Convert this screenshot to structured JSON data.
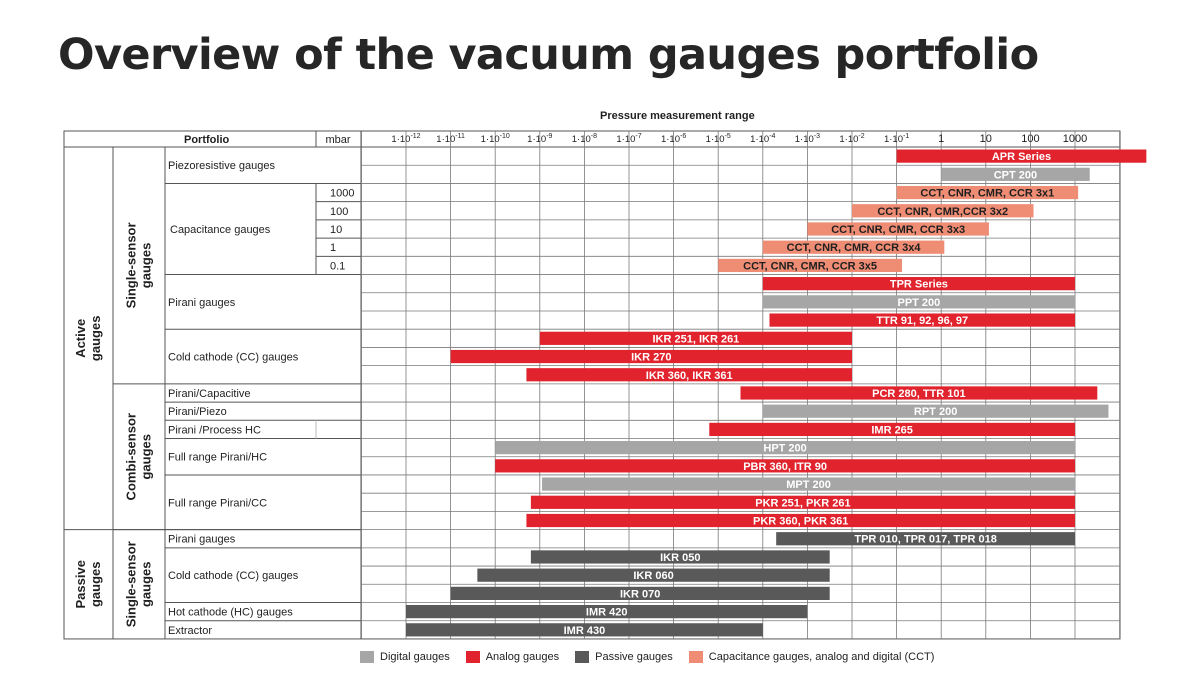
{
  "title": "Overview of the vacuum gauges portfolio",
  "chart_data": {
    "type": "bar",
    "orientation": "horizontal-range",
    "title": "Pressure measurement range",
    "xscale": "log",
    "xunit": "mbar",
    "xlim": [
      "1·10⁻¹³",
      "1·10⁴"
    ],
    "x_ticks": [
      "1·10-12",
      "1·10-11",
      "1·10-10",
      "1·10-9",
      "1·10-8",
      "1·10-7",
      "1·10-6",
      "1·10-5",
      "1·10-4",
      "1·10-3",
      "1·10-2",
      "1·10-1",
      "1",
      "10",
      "100",
      "1000"
    ],
    "header": {
      "portfolio": "Portfolio",
      "unit": "mbar"
    },
    "groups_l1": [
      {
        "label": "Active gauges",
        "rows": [
          0,
          20
        ]
      },
      {
        "label": "Passive gauges",
        "rows": [
          21,
          26
        ]
      }
    ],
    "groups_l2": [
      {
        "label": "Single-sensor gauges",
        "rows": [
          0,
          12
        ]
      },
      {
        "label": "Combi-sensor gauges",
        "rows": [
          13,
          20
        ]
      },
      {
        "label": "Single-sensor gauges",
        "rows": [
          21,
          26
        ]
      }
    ],
    "categories": [
      {
        "label": "Piezoresistive gauges",
        "rows": [
          0,
          1
        ]
      },
      {
        "label": "Capacitance gauges",
        "rows": [
          2,
          6
        ]
      },
      {
        "label": "Pirani gauges",
        "rows": [
          7,
          9
        ]
      },
      {
        "label": "Cold cathode (CC) gauges",
        "rows": [
          10,
          12
        ]
      },
      {
        "label": "Pirani/Capacitive",
        "rows": [
          13,
          13
        ]
      },
      {
        "label": "Pirani/Piezo",
        "rows": [
          14,
          14
        ]
      },
      {
        "label": "Pirani /Process HC",
        "rows": [
          15,
          15
        ]
      },
      {
        "label": "Full range Pirani/HC",
        "rows": [
          16,
          17
        ]
      },
      {
        "label": "Full range Pirani/CC",
        "rows": [
          18,
          20
        ]
      },
      {
        "label": "Pirani gauges",
        "rows": [
          21,
          21
        ]
      },
      {
        "label": "Cold cathode (CC) gauges",
        "rows": [
          22,
          24
        ]
      },
      {
        "label": "Hot cathode (HC) gauges",
        "rows": [
          25,
          25
        ]
      },
      {
        "label": "Extractor",
        "rows": [
          26,
          26
        ]
      }
    ],
    "mbar_labels": [
      {
        "row": 2,
        "text": "1000"
      },
      {
        "row": 3,
        "text": "100"
      },
      {
        "row": 4,
        "text": "10"
      },
      {
        "row": 5,
        "text": "1"
      },
      {
        "row": 6,
        "text": "0.1"
      }
    ],
    "bars": [
      {
        "row": 0,
        "label": "APR Series",
        "type": "analog",
        "from_exp": -1,
        "to_exp": 4.6
      },
      {
        "row": 1,
        "label": "CPT 200",
        "type": "digital",
        "from_exp": 0,
        "to_exp": 3.33
      },
      {
        "row": 2,
        "label": "CCT, CNR, CMR, CCR 3x1",
        "type": "capacitance",
        "from_exp": -1,
        "to_exp": 3.07
      },
      {
        "row": 3,
        "label": "CCT, CNR, CMR,CCR 3x2",
        "type": "capacitance",
        "from_exp": -2,
        "to_exp": 2.07
      },
      {
        "row": 4,
        "label": "CCT, CNR, CMR, CCR 3x3",
        "type": "capacitance",
        "from_exp": -3,
        "to_exp": 1.07
      },
      {
        "row": 5,
        "label": "CCT, CNR, CMR, CCR 3x4",
        "type": "capacitance",
        "from_exp": -4,
        "to_exp": 0.07
      },
      {
        "row": 6,
        "label": "CCT, CNR, CMR, CCR 3x5",
        "type": "capacitance",
        "from_exp": -5,
        "to_exp": -0.88
      },
      {
        "row": 7,
        "label": "TPR Series",
        "type": "analog",
        "from_exp": -4,
        "to_exp": 3
      },
      {
        "row": 8,
        "label": "PPT 200",
        "type": "digital",
        "from_exp": -4,
        "to_exp": 3
      },
      {
        "row": 9,
        "label": "TTR 91, 92, 96, 97",
        "type": "analog",
        "from_exp": -3.85,
        "to_exp": 3
      },
      {
        "row": 10,
        "label": "IKR 251, IKR 261",
        "type": "analog",
        "from_exp": -9,
        "to_exp": -2
      },
      {
        "row": 11,
        "label": "IKR 270",
        "type": "analog",
        "from_exp": -11,
        "to_exp": -2
      },
      {
        "row": 12,
        "label": "IKR 360, IKR 361",
        "type": "analog",
        "from_exp": -9.3,
        "to_exp": -2
      },
      {
        "row": 13,
        "label": "PCR 280, TTR 101",
        "type": "analog",
        "from_exp": -4.5,
        "to_exp": 3.5
      },
      {
        "row": 14,
        "label": "RPT 200",
        "type": "digital",
        "from_exp": -4,
        "to_exp": 3.75
      },
      {
        "row": 15,
        "label": "IMR 265",
        "type": "analog",
        "from_exp": -5.2,
        "to_exp": 3
      },
      {
        "row": 16,
        "label": "HPT 200",
        "type": "digital",
        "from_exp": -10,
        "to_exp": 3
      },
      {
        "row": 17,
        "label": "PBR 360, ITR 90",
        "type": "analog",
        "from_exp": -10,
        "to_exp": 3
      },
      {
        "row": 18,
        "label": "MPT 200",
        "type": "digital",
        "from_exp": -8.95,
        "to_exp": 3
      },
      {
        "row": 19,
        "label": "PKR 251, PKR 261",
        "type": "analog",
        "from_exp": -9.2,
        "to_exp": 3
      },
      {
        "row": 20,
        "label": "PKR 360, PKR 361",
        "type": "analog",
        "from_exp": -9.3,
        "to_exp": 3
      },
      {
        "row": 21,
        "label": "TPR 010, TPR 017, TPR 018",
        "type": "passive",
        "from_exp": -3.7,
        "to_exp": 3
      },
      {
        "row": 22,
        "label": "IKR 050",
        "type": "passive",
        "from_exp": -9.2,
        "to_exp": -2.5
      },
      {
        "row": 23,
        "label": "IKR 060",
        "type": "passive",
        "from_exp": -10.4,
        "to_exp": -2.5
      },
      {
        "row": 24,
        "label": "IKR 070",
        "type": "passive",
        "from_exp": -11,
        "to_exp": -2.5
      },
      {
        "row": 25,
        "label": "IMR 420",
        "type": "passive",
        "from_exp": -12,
        "to_exp": -3
      },
      {
        "row": 26,
        "label": "IMR 430",
        "type": "passive",
        "from_exp": -12,
        "to_exp": -4
      }
    ],
    "legend": [
      {
        "key": "digital",
        "label": "Digital gauges",
        "color": "#a6a6a6"
      },
      {
        "key": "analog",
        "label": "Analog gauges",
        "color": "#e1232d"
      },
      {
        "key": "passive",
        "label": "Passive gauges",
        "color": "#595959"
      },
      {
        "key": "capacitance",
        "label": "Capacitance gauges, analog and digital (CCT)",
        "color": "#ee8c74"
      }
    ],
    "grid": true
  }
}
